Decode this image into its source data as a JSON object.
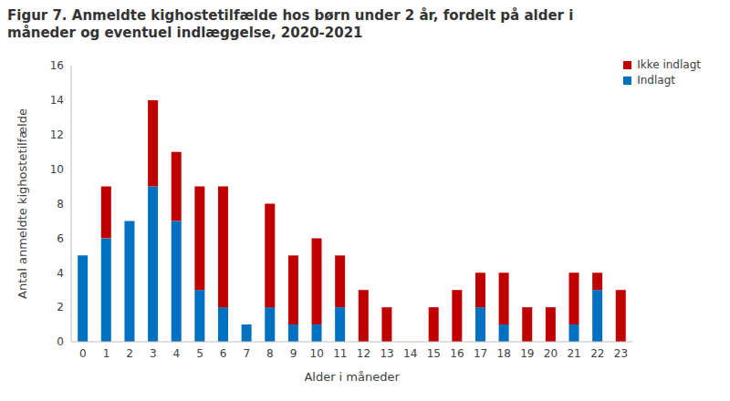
{
  "chart_data": {
    "type": "bar",
    "title": "Figur 7. Anmeldte kighostetilfælde  hos børn under 2 år, fordelt på alder i måneder og eventuel indlæggelse, 2020-2021",
    "x_label": "Alder i måneder",
    "y_label": "Antal anmeldte kighostetilfælde",
    "categories": [
      "0",
      "1",
      "2",
      "3",
      "4",
      "5",
      "6",
      "7",
      "8",
      "9",
      "10",
      "11",
      "12",
      "13",
      "14",
      "15",
      "16",
      "17",
      "18",
      "19",
      "20",
      "21",
      "22",
      "23"
    ],
    "series": [
      {
        "name": "Indlagt",
        "color": "#0070c0",
        "values": [
          5,
          6,
          7,
          9,
          7,
          3,
          2,
          1,
          2,
          1,
          1,
          2,
          0,
          0,
          0,
          0,
          0,
          2,
          1,
          0,
          0,
          1,
          3,
          0
        ]
      },
      {
        "name": "Ikke indlagt",
        "color": "#c00000",
        "values": [
          0,
          3,
          0,
          5,
          4,
          6,
          7,
          0,
          6,
          4,
          5,
          3,
          3,
          2,
          0,
          2,
          3,
          2,
          3,
          2,
          2,
          3,
          1,
          3
        ]
      }
    ],
    "ylim": [
      0,
      16
    ],
    "yticks": [
      0,
      2,
      4,
      6,
      8,
      10,
      12,
      14,
      16
    ],
    "stacked": true,
    "legend": "upper right",
    "grid": false
  }
}
